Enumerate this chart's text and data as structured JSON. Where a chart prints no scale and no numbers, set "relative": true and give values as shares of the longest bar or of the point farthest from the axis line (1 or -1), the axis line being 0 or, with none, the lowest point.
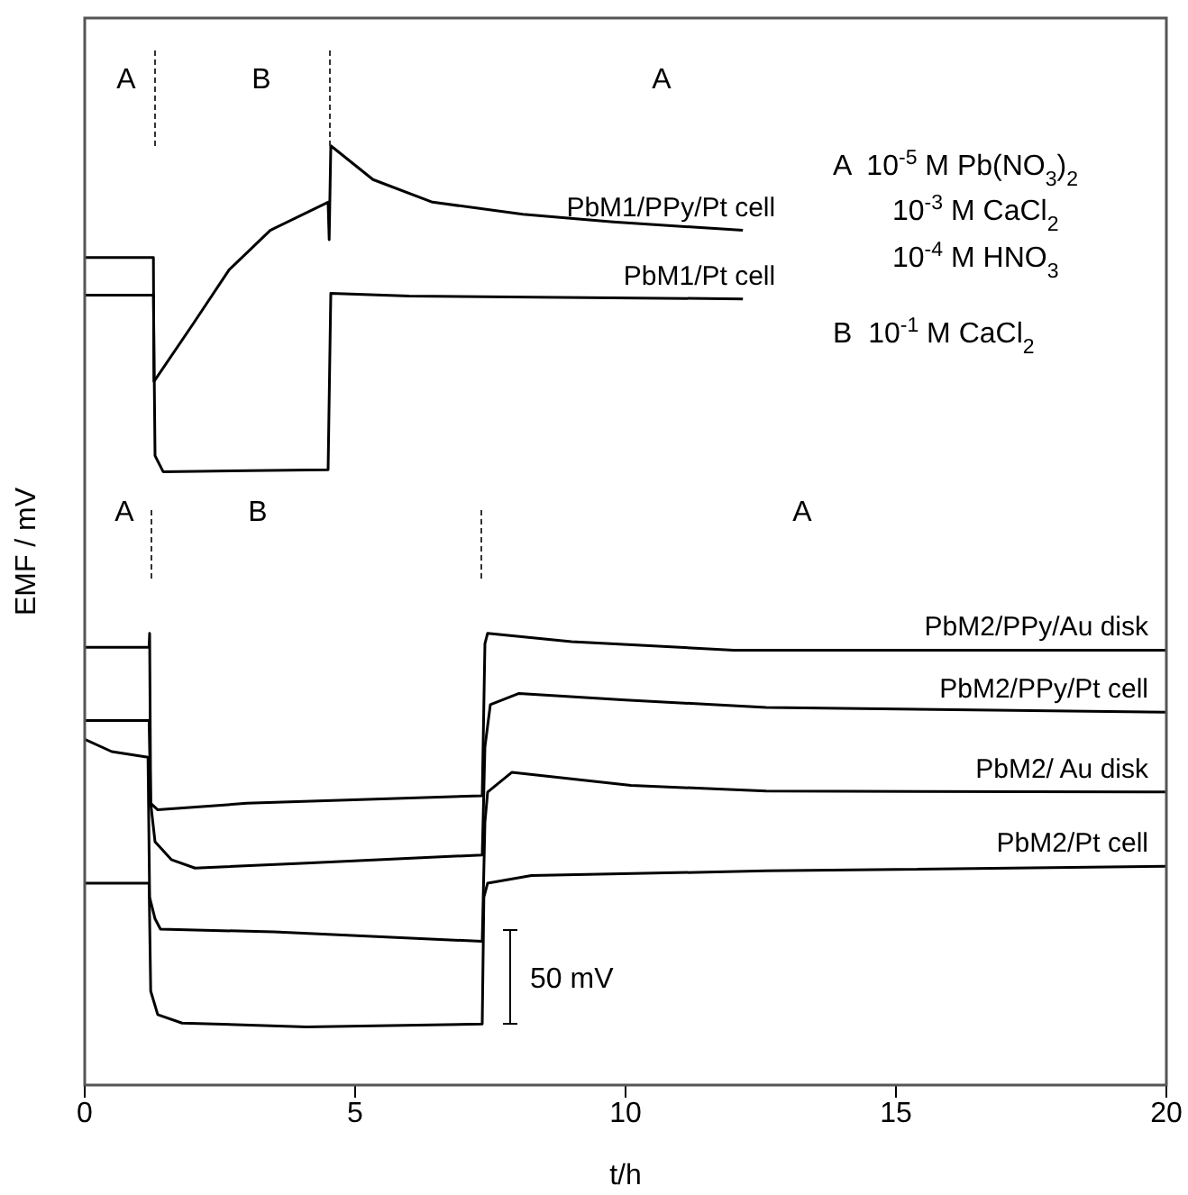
{
  "chart_data": {
    "type": "line",
    "xlabel": "t/h",
    "ylabel": "EMF / mV",
    "xlim": [
      0,
      20
    ],
    "xticks": [
      0,
      5,
      10,
      15,
      20
    ],
    "relative": true,
    "series": [
      {
        "name": "PbM1/PPy/Pt cell",
        "color": "#000000",
        "x": [
          0,
          1.27,
          1.28,
          2.0,
          2.67,
          3.43,
          4.5,
          4.52,
          4.55,
          5.33,
          6.43,
          8.1,
          9.77,
          12.17
        ],
        "values": [
          0.881,
          0.881,
          0.749,
          0.81,
          0.868,
          0.91,
          0.94,
          0.9,
          1.0,
          0.964,
          0.94,
          0.927,
          0.919,
          0.91
        ]
      },
      {
        "name": "PbM1/Pt cell",
        "color": "#000000",
        "x": [
          0,
          1.27,
          1.3,
          1.45,
          4.5,
          4.55,
          6,
          12.17
        ],
        "values": [
          0.841,
          0.841,
          0.67,
          0.653,
          0.655,
          0.843,
          0.84,
          0.837
        ]
      },
      {
        "name": "PbM2/PPy/Au disk",
        "color": "#000000",
        "x": [
          0,
          1.19,
          1.2,
          1.22,
          1.35,
          3,
          7.35,
          7.4,
          7.45,
          9,
          12,
          20
        ],
        "values": [
          0.466,
          0.466,
          0.481,
          0.3,
          0.293,
          0.3,
          0.308,
          0.47,
          0.481,
          0.472,
          0.463,
          0.463
        ]
      },
      {
        "name": "PbM2/PPy/Pt cell",
        "color": "#000000",
        "x": [
          0,
          1.19,
          1.22,
          1.3,
          1.6,
          2.04,
          4,
          7.35,
          7.4,
          7.5,
          8.03,
          10,
          12.6,
          20
        ],
        "values": [
          0.388,
          0.388,
          0.3,
          0.259,
          0.24,
          0.231,
          0.236,
          0.245,
          0.36,
          0.405,
          0.417,
          0.41,
          0.402,
          0.397
        ]
      },
      {
        "name": "PbM2/ Au disk",
        "color": "#000000",
        "x": [
          0,
          0.5,
          1.17,
          1.2,
          1.3,
          1.4,
          3.5,
          7.35,
          7.4,
          7.45,
          7.9,
          10.1,
          12.6,
          20
        ],
        "values": [
          0.368,
          0.355,
          0.349,
          0.2,
          0.177,
          0.166,
          0.163,
          0.153,
          0.28,
          0.312,
          0.333,
          0.319,
          0.313,
          0.312
        ]
      },
      {
        "name": "PbM2/Pt cell",
        "color": "#000000",
        "x": [
          0,
          1.19,
          1.22,
          1.35,
          1.8,
          4.1,
          7.35,
          7.38,
          7.45,
          8.26,
          12.6,
          20
        ],
        "values": [
          0.215,
          0.215,
          0.1,
          0.075,
          0.066,
          0.062,
          0.065,
          0.2,
          0.215,
          0.223,
          0.228,
          0.233
        ]
      }
    ],
    "annotations": [
      "A",
      "B",
      "A",
      "A",
      "B",
      "A",
      "50 mV",
      "A  10$^{-5}$ M Pb(NO$_{3}$)$_{2}$",
      "10$^{-3}$ M CaCl$_{2}$",
      "10$^{-4}$ M HNO$_{3}$",
      "B  10$^{-1}$ M CaCl$_{2}$"
    ]
  }
}
